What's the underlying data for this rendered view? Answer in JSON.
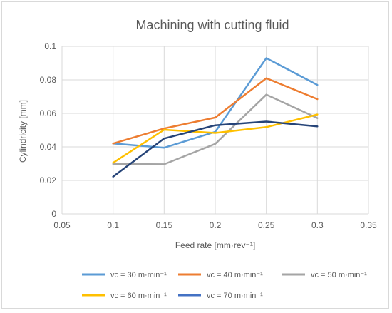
{
  "chart_data": {
    "type": "line",
    "title": "Machining with cutting fluid",
    "xlabel": "Feed rate [mm·rev⁻¹]",
    "ylabel": "Cylindricity [mm]",
    "xlim": [
      0.05,
      0.35
    ],
    "ylim": [
      0,
      0.1
    ],
    "x_ticks": [
      "0.05",
      "0.1",
      "0.15",
      "0.2",
      "0.25",
      "0.3",
      "0.35"
    ],
    "y_ticks": [
      "0",
      "0.02",
      "0.04",
      "0.06",
      "0.08",
      "0.1"
    ],
    "grid": true,
    "legend_position": "bottom",
    "x": [
      0.1,
      0.15,
      0.2,
      0.25,
      0.3
    ],
    "series": [
      {
        "name": "vc = 30 m·min⁻¹",
        "color": "#5B9BD5",
        "values": [
          0.042,
          0.0395,
          0.049,
          0.093,
          0.077
        ]
      },
      {
        "name": "vc = 40 m·min⁻¹",
        "color": "#ED7D31",
        "values": [
          0.042,
          0.051,
          0.0575,
          0.081,
          0.0685
        ]
      },
      {
        "name": "vc = 50 m·min⁻¹",
        "color": "#A5A5A5",
        "values": [
          0.0298,
          0.0296,
          0.0418,
          0.0712,
          0.0572
        ]
      },
      {
        "name": "vc = 60 m·min⁻¹",
        "color": "#FFC000",
        "values": [
          0.0305,
          0.0502,
          0.0483,
          0.0518,
          0.0593
        ]
      },
      {
        "name": "vc = 70 m·min⁻¹",
        "color": "#264478",
        "legend_color": "#4472C4",
        "values": [
          0.0222,
          0.045,
          0.0529,
          0.0551,
          0.0522
        ]
      }
    ]
  }
}
